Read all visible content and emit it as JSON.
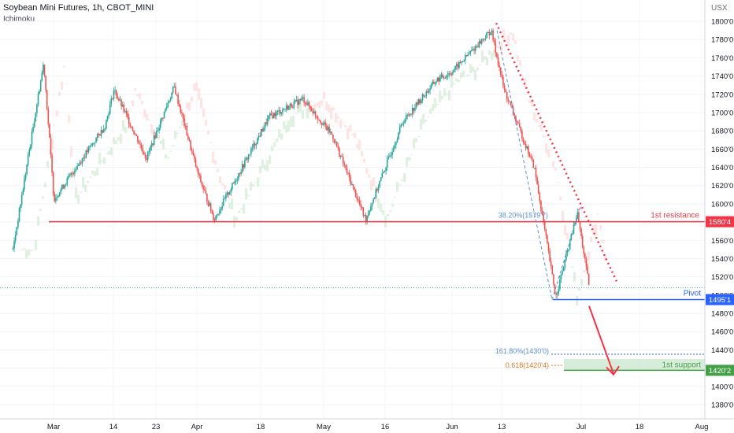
{
  "header": {
    "symbol_line": "Soybean Mini Futures, 1h, CBOT_MINI",
    "indicator": "Ichimoku"
  },
  "colors": {
    "bull": "#26a69a",
    "bear": "#ef5350",
    "resistance": "#f23645",
    "pivot": "#2962ff",
    "support": "#43a047",
    "fib": "#5b8fd4",
    "fib618": "#e07a28",
    "cloud_green": "#c8e6c9",
    "cloud_red": "#ffcdd2"
  },
  "chart_data": {
    "type": "candlestick",
    "yaxis_unit": "USX",
    "ylim": [
      13700,
      18000
    ],
    "y_ticks": [
      "1800'0",
      "1780'0",
      "1760'0",
      "1740'0",
      "1720'0",
      "1700'0",
      "1680'0",
      "1660'0",
      "1640'0",
      "1620'0",
      "1600'0",
      "1580'0",
      "1560'0",
      "1540'0",
      "1520'0",
      "1500'0",
      "1480'0",
      "1460'0",
      "1440'0",
      "1420'0",
      "1400'0",
      "1380'0"
    ],
    "x_ticks": [
      "Mar",
      "14",
      "23",
      "Apr",
      "18",
      "May",
      "16",
      "Jun",
      "13",
      "Jul",
      "18",
      "Aug"
    ],
    "key_points": [
      {
        "date": "Feb 21",
        "price": 15500
      },
      {
        "date": "Feb 27",
        "price": 17550
      },
      {
        "date": "Mar 1",
        "price": 16050
      },
      {
        "date": "Mar 12",
        "price": 16850
      },
      {
        "date": "Mar 14",
        "price": 17250
      },
      {
        "date": "Mar 21",
        "price": 16500
      },
      {
        "date": "Mar 27",
        "price": 17280
      },
      {
        "date": "Apr 1",
        "price": 16350
      },
      {
        "date": "Apr 5",
        "price": 15830
      },
      {
        "date": "Apr 18",
        "price": 16950
      },
      {
        "date": "Apr 26",
        "price": 17150
      },
      {
        "date": "May 3",
        "price": 16750
      },
      {
        "date": "May 11",
        "price": 15830
      },
      {
        "date": "May 20",
        "price": 16900
      },
      {
        "date": "May 28",
        "price": 17350
      },
      {
        "date": "Jun 1",
        "price": 17450
      },
      {
        "date": "Jun 10",
        "price": 17900
      },
      {
        "date": "Jun 13",
        "price": 17250
      },
      {
        "date": "Jun 20",
        "price": 16400
      },
      {
        "date": "Jun 25",
        "price": 14980
      },
      {
        "date": "Jun 30",
        "price": 15900
      },
      {
        "date": "Jul 3",
        "price": 15080
      }
    ],
    "levels": {
      "resistance": {
        "label": "1st resistance",
        "tag": "1580'4"
      },
      "pivot": {
        "label": "Pivot",
        "tag": "1495'1"
      },
      "support": {
        "label": "1st support",
        "tag": "1420'2"
      },
      "fib_resistance": "38.20%(1579'7)",
      "fib_support_1": "161.80%(1430'0)",
      "fib_support_2": "0.618(1420'4)"
    }
  }
}
